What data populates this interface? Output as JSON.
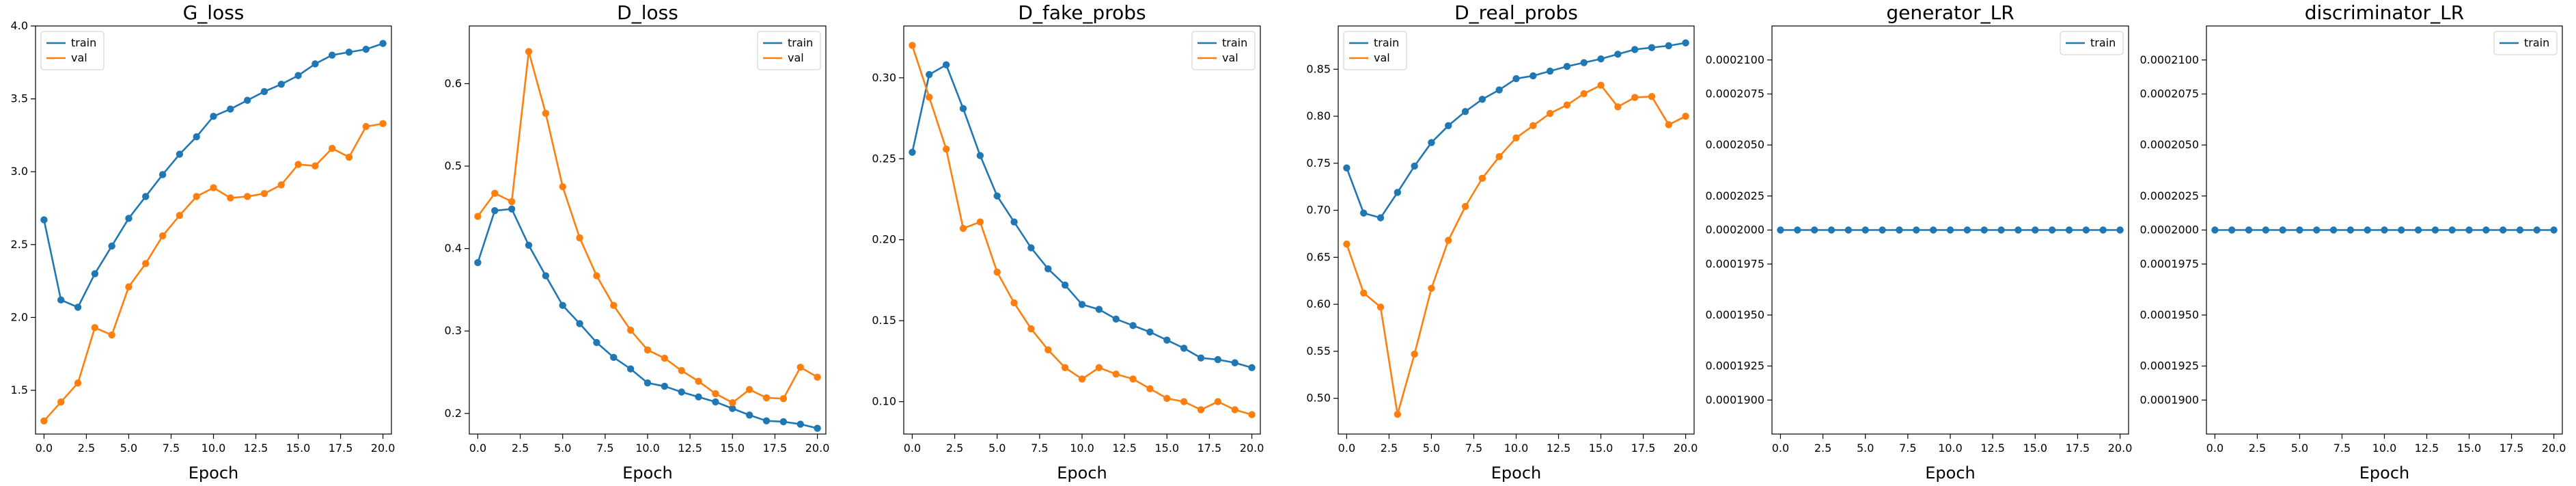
{
  "colors": {
    "train": "#1f77b4",
    "val": "#ff7f0e"
  },
  "chart_data": [
    {
      "type": "line",
      "title": "G_loss",
      "xlabel": "Epoch",
      "ylabel": "",
      "xlim": [
        -0.5,
        20.5
      ],
      "ylim": [
        1.2,
        4.0
      ],
      "xticks": [
        0,
        2.5,
        5,
        7.5,
        10,
        12.5,
        15,
        17.5,
        20
      ],
      "xtick_labels": [
        "0.0",
        "2.5",
        "5.0",
        "7.5",
        "10.0",
        "12.5",
        "15.0",
        "17.5",
        "20.0"
      ],
      "yticks": [
        1.5,
        2.0,
        2.5,
        3.0,
        3.5,
        4.0
      ],
      "ytick_labels": [
        "1.5",
        "2.0",
        "2.5",
        "3.0",
        "3.5",
        "4.0"
      ],
      "legend": "top-left",
      "grid": false,
      "x": [
        0,
        1,
        2,
        3,
        4,
        5,
        6,
        7,
        8,
        9,
        10,
        11,
        12,
        13,
        14,
        15,
        16,
        17,
        18,
        19,
        20
      ],
      "series": [
        {
          "name": "train",
          "values": [
            2.67,
            2.12,
            2.07,
            2.3,
            2.49,
            2.68,
            2.83,
            2.98,
            3.12,
            3.24,
            3.38,
            3.43,
            3.49,
            3.55,
            3.6,
            3.66,
            3.74,
            3.8,
            3.82,
            3.84,
            3.88
          ]
        },
        {
          "name": "val",
          "values": [
            1.29,
            1.42,
            1.55,
            1.93,
            1.88,
            2.21,
            2.37,
            2.56,
            2.7,
            2.83,
            2.89,
            2.82,
            2.83,
            2.85,
            2.91,
            3.05,
            3.04,
            3.16,
            3.1,
            3.31,
            3.33
          ]
        }
      ]
    },
    {
      "type": "line",
      "title": "D_loss",
      "xlabel": "Epoch",
      "ylabel": "",
      "xlim": [
        -0.5,
        20.5
      ],
      "ylim": [
        0.175,
        0.67
      ],
      "xticks": [
        0,
        2.5,
        5,
        7.5,
        10,
        12.5,
        15,
        17.5,
        20
      ],
      "xtick_labels": [
        "0.0",
        "2.5",
        "5.0",
        "7.5",
        "10.0",
        "12.5",
        "15.0",
        "17.5",
        "20.0"
      ],
      "yticks": [
        0.2,
        0.3,
        0.4,
        0.5,
        0.6
      ],
      "ytick_labels": [
        "0.2",
        "0.3",
        "0.4",
        "0.5",
        "0.6"
      ],
      "legend": "top-right",
      "grid": false,
      "x": [
        0,
        1,
        2,
        3,
        4,
        5,
        6,
        7,
        8,
        9,
        10,
        11,
        12,
        13,
        14,
        15,
        16,
        17,
        18,
        19,
        20
      ],
      "series": [
        {
          "name": "train",
          "values": [
            0.383,
            0.446,
            0.448,
            0.404,
            0.367,
            0.331,
            0.309,
            0.286,
            0.268,
            0.254,
            0.237,
            0.233,
            0.226,
            0.22,
            0.214,
            0.206,
            0.198,
            0.191,
            0.19,
            0.187,
            0.182
          ]
        },
        {
          "name": "val",
          "values": [
            0.439,
            0.467,
            0.457,
            0.639,
            0.564,
            0.475,
            0.413,
            0.367,
            0.331,
            0.301,
            0.277,
            0.267,
            0.252,
            0.239,
            0.224,
            0.213,
            0.229,
            0.219,
            0.218,
            0.256,
            0.244
          ]
        }
      ]
    },
    {
      "type": "line",
      "title": "D_fake_probs",
      "xlabel": "Epoch",
      "ylabel": "",
      "xlim": [
        -0.5,
        20.5
      ],
      "ylim": [
        0.08,
        0.332
      ],
      "xticks": [
        0,
        2.5,
        5,
        7.5,
        10,
        12.5,
        15,
        17.5,
        20
      ],
      "xtick_labels": [
        "0.0",
        "2.5",
        "5.0",
        "7.5",
        "10.0",
        "12.5",
        "15.0",
        "17.5",
        "20.0"
      ],
      "yticks": [
        0.1,
        0.15,
        0.2,
        0.25,
        0.3
      ],
      "ytick_labels": [
        "0.10",
        "0.15",
        "0.20",
        "0.25",
        "0.30"
      ],
      "legend": "top-right",
      "grid": false,
      "x": [
        0,
        1,
        2,
        3,
        4,
        5,
        6,
        7,
        8,
        9,
        10,
        11,
        12,
        13,
        14,
        15,
        16,
        17,
        18,
        19,
        20
      ],
      "series": [
        {
          "name": "train",
          "values": [
            0.254,
            0.302,
            0.308,
            0.281,
            0.252,
            0.227,
            0.211,
            0.195,
            0.182,
            0.172,
            0.16,
            0.157,
            0.151,
            0.147,
            0.143,
            0.138,
            0.133,
            0.127,
            0.126,
            0.124,
            0.121
          ]
        },
        {
          "name": "val",
          "values": [
            0.32,
            0.288,
            0.256,
            0.207,
            0.211,
            0.18,
            0.161,
            0.145,
            0.132,
            0.121,
            0.114,
            0.121,
            0.117,
            0.114,
            0.108,
            0.102,
            0.1,
            0.095,
            0.1,
            0.095,
            0.092
          ]
        }
      ]
    },
    {
      "type": "line",
      "title": "D_real_probs",
      "xlabel": "Epoch",
      "ylabel": "",
      "xlim": [
        -0.5,
        20.5
      ],
      "ylim": [
        0.462,
        0.896
      ],
      "xticks": [
        0,
        2.5,
        5,
        7.5,
        10,
        12.5,
        15,
        17.5,
        20
      ],
      "xtick_labels": [
        "0.0",
        "2.5",
        "5.0",
        "7.5",
        "10.0",
        "12.5",
        "15.0",
        "17.5",
        "20.0"
      ],
      "yticks": [
        0.5,
        0.55,
        0.6,
        0.65,
        0.7,
        0.75,
        0.8,
        0.85
      ],
      "ytick_labels": [
        "0.50",
        "0.55",
        "0.60",
        "0.65",
        "0.70",
        "0.75",
        "0.80",
        "0.85"
      ],
      "legend": "top-left",
      "grid": false,
      "x": [
        0,
        1,
        2,
        3,
        4,
        5,
        6,
        7,
        8,
        9,
        10,
        11,
        12,
        13,
        14,
        15,
        16,
        17,
        18,
        19,
        20
      ],
      "series": [
        {
          "name": "train",
          "values": [
            0.745,
            0.697,
            0.692,
            0.719,
            0.747,
            0.772,
            0.79,
            0.805,
            0.818,
            0.828,
            0.84,
            0.843,
            0.848,
            0.853,
            0.857,
            0.861,
            0.866,
            0.871,
            0.873,
            0.875,
            0.878
          ]
        },
        {
          "name": "val",
          "values": [
            0.664,
            0.612,
            0.597,
            0.483,
            0.547,
            0.617,
            0.668,
            0.704,
            0.734,
            0.757,
            0.777,
            0.79,
            0.803,
            0.812,
            0.824,
            0.833,
            0.81,
            0.82,
            0.821,
            0.791,
            0.8
          ]
        }
      ]
    },
    {
      "type": "line",
      "title": "generator_LR",
      "xlabel": "Epoch",
      "ylabel": "",
      "xlim": [
        -0.5,
        20.5
      ],
      "ylim": [
        0.000188,
        0.000212
      ],
      "xticks": [
        0,
        2.5,
        5,
        7.5,
        10,
        12.5,
        15,
        17.5,
        20
      ],
      "xtick_labels": [
        "0.0",
        "2.5",
        "5.0",
        "7.5",
        "10.0",
        "12.5",
        "15.0",
        "17.5",
        "20.0"
      ],
      "yticks": [
        0.00019,
        0.000192,
        0.000195,
        0.000198,
        0.0002,
        0.000202,
        0.000205,
        0.000208,
        0.00021
      ],
      "ytick_labels": [
        "0.0001900",
        "0.0001925",
        "0.0001950",
        "0.0001975",
        "0.0002000",
        "0.0002025",
        "0.0002050",
        "0.0002075",
        "0.0002100"
      ],
      "legend": "top-right",
      "grid": false,
      "x": [
        0,
        1,
        2,
        3,
        4,
        5,
        6,
        7,
        8,
        9,
        10,
        11,
        12,
        13,
        14,
        15,
        16,
        17,
        18,
        19,
        20
      ],
      "series": [
        {
          "name": "train",
          "values": [
            0.0002,
            0.0002,
            0.0002,
            0.0002,
            0.0002,
            0.0002,
            0.0002,
            0.0002,
            0.0002,
            0.0002,
            0.0002,
            0.0002,
            0.0002,
            0.0002,
            0.0002,
            0.0002,
            0.0002,
            0.0002,
            0.0002,
            0.0002,
            0.0002
          ]
        }
      ]
    },
    {
      "type": "line",
      "title": "discriminator_LR",
      "xlabel": "Epoch",
      "ylabel": "",
      "xlim": [
        -0.5,
        20.5
      ],
      "ylim": [
        0.000188,
        0.000212
      ],
      "xticks": [
        0,
        2.5,
        5,
        7.5,
        10,
        12.5,
        15,
        17.5,
        20
      ],
      "xtick_labels": [
        "0.0",
        "2.5",
        "5.0",
        "7.5",
        "10.0",
        "12.5",
        "15.0",
        "17.5",
        "20.0"
      ],
      "yticks": [
        0.00019,
        0.000192,
        0.000195,
        0.000198,
        0.0002,
        0.000202,
        0.000205,
        0.000208,
        0.00021
      ],
      "ytick_labels": [
        "0.0001900",
        "0.0001925",
        "0.0001950",
        "0.0001975",
        "0.0002000",
        "0.0002025",
        "0.0002050",
        "0.0002075",
        "0.0002100"
      ],
      "legend": "top-right",
      "grid": false,
      "x": [
        0,
        1,
        2,
        3,
        4,
        5,
        6,
        7,
        8,
        9,
        10,
        11,
        12,
        13,
        14,
        15,
        16,
        17,
        18,
        19,
        20
      ],
      "series": [
        {
          "name": "train",
          "values": [
            0.0002,
            0.0002,
            0.0002,
            0.0002,
            0.0002,
            0.0002,
            0.0002,
            0.0002,
            0.0002,
            0.0002,
            0.0002,
            0.0002,
            0.0002,
            0.0002,
            0.0002,
            0.0002,
            0.0002,
            0.0002,
            0.0002,
            0.0002,
            0.0002
          ]
        }
      ]
    }
  ]
}
